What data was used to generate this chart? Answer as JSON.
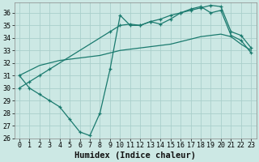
{
  "xlabel": "Humidex (Indice chaleur)",
  "bg_color": "#cce8e4",
  "grid_color": "#aacfcb",
  "line_color": "#1a7a6e",
  "xlim": [
    -0.5,
    23.5
  ],
  "ylim": [
    26,
    36.8
  ],
  "xticks": [
    0,
    1,
    2,
    3,
    4,
    5,
    6,
    7,
    8,
    9,
    10,
    11,
    12,
    13,
    14,
    15,
    16,
    17,
    18,
    19,
    20,
    21,
    22,
    23
  ],
  "yticks": [
    26,
    27,
    28,
    29,
    30,
    31,
    32,
    33,
    34,
    35,
    36
  ],
  "line1_x": [
    0,
    1,
    2,
    3,
    4,
    5,
    6,
    7,
    8,
    9,
    10,
    11,
    12,
    13,
    14,
    15,
    16,
    17,
    18,
    19,
    20,
    21,
    22,
    23
  ],
  "line1_y": [
    31.0,
    30.0,
    29.5,
    29.0,
    28.5,
    27.5,
    26.5,
    26.2,
    28.0,
    31.5,
    35.8,
    35.0,
    35.0,
    35.3,
    35.1,
    35.5,
    36.0,
    36.3,
    36.5,
    36.0,
    36.2,
    34.2,
    33.8,
    32.8
  ],
  "line1_markers": true,
  "line2_x": [
    0,
    2,
    3,
    4,
    5,
    6,
    7,
    8,
    9,
    10,
    11,
    12,
    13,
    14,
    15,
    16,
    17,
    18,
    19,
    20,
    21,
    22,
    23
  ],
  "line2_y": [
    31.0,
    31.8,
    32.0,
    32.2,
    32.3,
    32.4,
    32.5,
    32.6,
    32.8,
    33.0,
    33.1,
    33.2,
    33.3,
    33.4,
    33.5,
    33.7,
    33.9,
    34.1,
    34.2,
    34.3,
    34.1,
    33.5,
    33.0
  ],
  "line2_markers": false,
  "line3_x": [
    0,
    1,
    2,
    3,
    9,
    10,
    11,
    12,
    13,
    14,
    15,
    16,
    17,
    18,
    19,
    20,
    21,
    22,
    23
  ],
  "line3_y": [
    30.0,
    30.5,
    31.0,
    31.5,
    34.5,
    35.0,
    35.1,
    35.0,
    35.3,
    35.5,
    35.8,
    36.0,
    36.2,
    36.4,
    36.6,
    36.5,
    34.5,
    34.2,
    33.2
  ],
  "line3_markers": true,
  "xlabel_fontsize": 7.5,
  "tick_fontsize": 6.0
}
